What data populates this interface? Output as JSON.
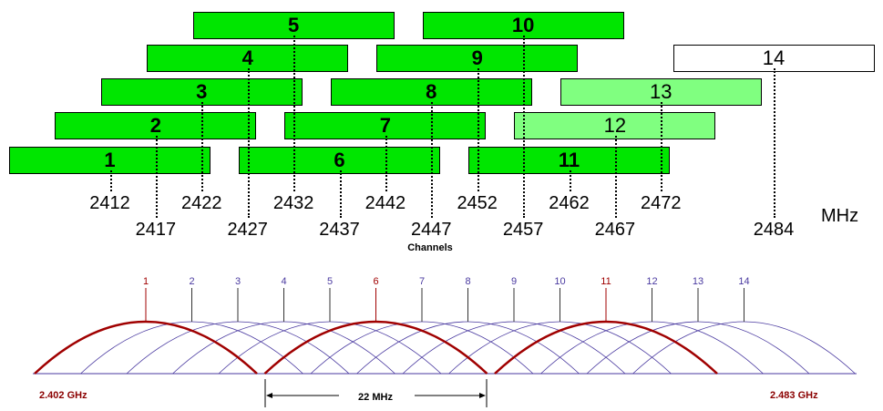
{
  "top_diagram": {
    "channels": [
      {
        "ch": "1",
        "label": "1",
        "freq": "2412",
        "style": "green"
      },
      {
        "ch": "2",
        "label": "2",
        "freq": "2417",
        "style": "green"
      },
      {
        "ch": "3",
        "label": "3",
        "freq": "2422",
        "style": "green"
      },
      {
        "ch": "4",
        "label": "4",
        "freq": "2427",
        "style": "green"
      },
      {
        "ch": "5",
        "label": "5",
        "freq": "2432",
        "style": "green"
      },
      {
        "ch": "6",
        "label": "6",
        "freq": "2437",
        "style": "green"
      },
      {
        "ch": "7",
        "label": "7",
        "freq": "2442",
        "style": "green"
      },
      {
        "ch": "8",
        "label": "8",
        "freq": "2447",
        "style": "green"
      },
      {
        "ch": "9",
        "label": "9",
        "freq": "2452",
        "style": "green"
      },
      {
        "ch": "10",
        "label": "10",
        "freq": "2457",
        "style": "green"
      },
      {
        "ch": "11",
        "label": "11",
        "freq": "2462",
        "style": "green"
      },
      {
        "ch": "12",
        "label": "12",
        "freq": "2467",
        "style": "light"
      },
      {
        "ch": "13",
        "label": "13",
        "freq": "2472",
        "style": "light"
      },
      {
        "ch": "14",
        "label": "14",
        "freq": "2484",
        "style": "white"
      }
    ],
    "unit_label": "MHz",
    "caption": "Channels"
  },
  "bottom_diagram": {
    "channel_labels": [
      "1",
      "2",
      "3",
      "4",
      "5",
      "6",
      "7",
      "8",
      "9",
      "10",
      "11",
      "12",
      "13",
      "14"
    ],
    "non_overlapping": [
      "1",
      "6",
      "11"
    ],
    "start_label": "2.402 GHz",
    "end_label": "2.483 GHz",
    "bandwidth_label": "22 MHz"
  },
  "colors": {
    "green": "#00e600",
    "light_green": "#80ff80",
    "white": "#ffffff",
    "highlight": "#a00000",
    "other": "#4a3aa0"
  }
}
